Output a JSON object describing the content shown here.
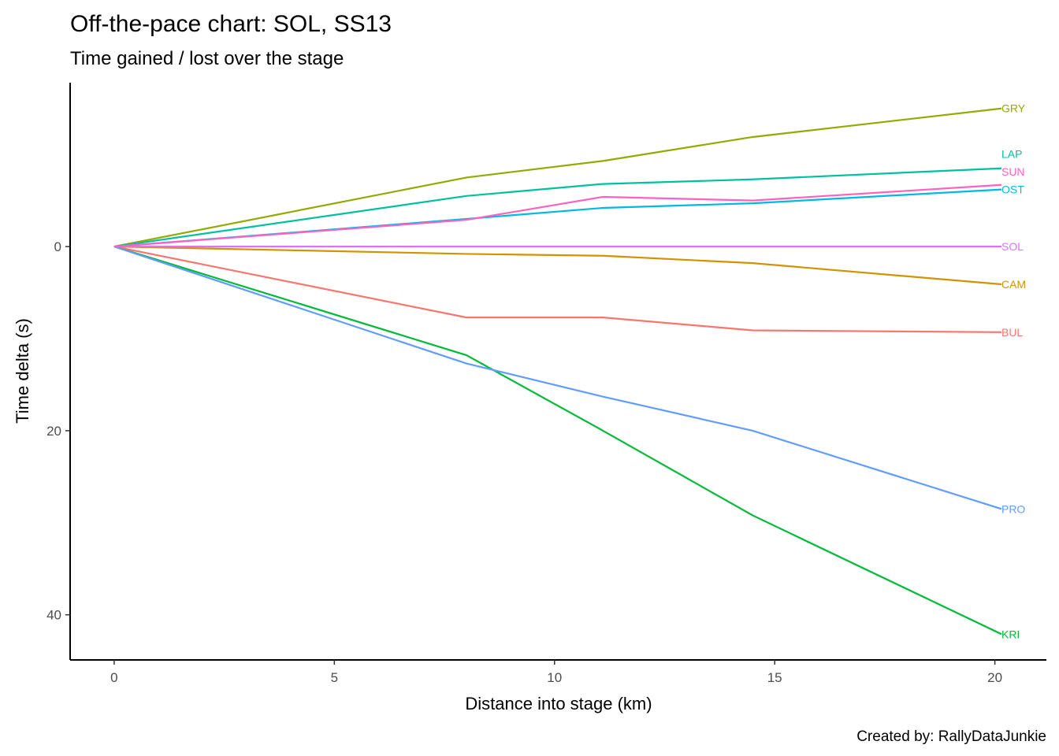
{
  "chart_data": {
    "type": "line",
    "title": "Off-the-pace chart: SOL, SS13",
    "subtitle": "Time gained / lost over the stage",
    "xlabel": "Distance into stage (km)",
    "ylabel": "Time delta (s)",
    "caption": "Created by: RallyDataJunkie",
    "xlim": [
      -1.0,
      21.17
    ],
    "ylim": [
      -17.8,
      44.9
    ],
    "y_reversed": true,
    "grid": false,
    "legend": "none (direct labels at line ends)",
    "xticks": [
      0,
      5,
      10,
      15,
      20
    ],
    "yticks": [
      0,
      20,
      40
    ],
    "x": [
      0,
      8.0,
      11.1,
      14.5,
      20.15
    ],
    "series": [
      {
        "name": "BUL",
        "color": "#F8766D",
        "values": [
          0,
          7.7,
          7.7,
          9.1,
          9.3
        ]
      },
      {
        "name": "CAM",
        "color": "#D39200",
        "values": [
          0,
          0.8,
          1.0,
          1.8,
          4.1
        ]
      },
      {
        "name": "GRY",
        "color": "#93AA00",
        "values": [
          0,
          -7.5,
          -9.3,
          -11.9,
          -15.0
        ]
      },
      {
        "name": "KRI",
        "color": "#00BA38",
        "values": [
          0,
          11.8,
          20.0,
          29.2,
          42.1
        ]
      },
      {
        "name": "LAP",
        "color": "#00C19F",
        "values": [
          0,
          -5.5,
          -6.8,
          -7.3,
          -8.5
        ]
      },
      {
        "name": "OST",
        "color": "#00B9E3",
        "values": [
          0,
          -3.0,
          -4.2,
          -4.7,
          -6.2
        ]
      },
      {
        "name": "PRO",
        "color": "#619CFF",
        "values": [
          0,
          12.7,
          16.3,
          20.0,
          28.5
        ]
      },
      {
        "name": "SOL",
        "color": "#DB72FB",
        "values": [
          0,
          0,
          0,
          0,
          0
        ]
      },
      {
        "name": "SUN",
        "color": "#FF61C3",
        "values": [
          0,
          -2.9,
          -5.4,
          -5.0,
          -6.7
        ]
      }
    ]
  }
}
